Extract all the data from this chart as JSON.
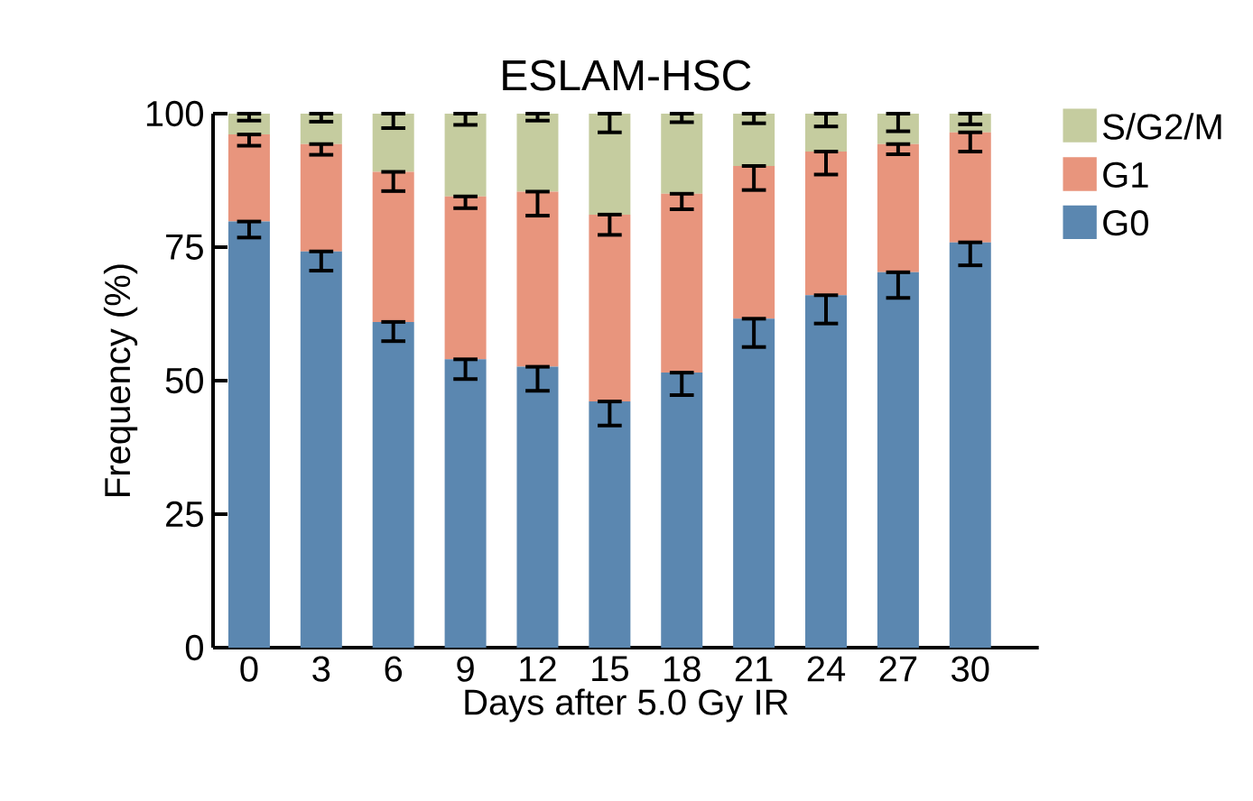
{
  "chart_data": {
    "type": "bar",
    "stacked": true,
    "title": "ESLAM-HSC",
    "xlabel": "Days after 5.0 Gy IR",
    "ylabel": "Frequency (%)",
    "categories": [
      "0",
      "3",
      "6",
      "9",
      "12",
      "15",
      "18",
      "21",
      "24",
      "27",
      "30"
    ],
    "series": [
      {
        "name": "G0",
        "color": "#5b87b0",
        "values": [
          79.8,
          74.2,
          61.0,
          54.0,
          52.6,
          46.1,
          51.5,
          61.6,
          66.0,
          70.3,
          75.9
        ],
        "errors": [
          [
            76.8,
            79.8
          ],
          [
            70.6,
            74.2
          ],
          [
            57.4,
            61.0
          ],
          [
            50.3,
            54.0
          ],
          [
            48.1,
            52.6
          ],
          [
            41.6,
            46.1
          ],
          [
            47.3,
            51.5
          ],
          [
            56.3,
            61.6
          ],
          [
            60.7,
            66.0
          ],
          [
            65.5,
            70.3
          ],
          [
            71.6,
            75.9
          ]
        ]
      },
      {
        "name": "G1",
        "color": "#e8957d",
        "values": [
          16.3,
          20.1,
          28.1,
          30.5,
          32.8,
          35.0,
          33.5,
          28.6,
          26.9,
          24.0,
          20.6
        ],
        "errors": [
          [
            94.0,
            96.1
          ],
          [
            92.3,
            94.3
          ],
          [
            85.5,
            89.1
          ],
          [
            82.3,
            84.5
          ],
          [
            80.9,
            85.4
          ],
          [
            77.3,
            81.1
          ],
          [
            82.1,
            85.0
          ],
          [
            85.7,
            90.2
          ],
          [
            88.6,
            92.9
          ],
          [
            92.4,
            94.3
          ],
          [
            92.9,
            96.5
          ]
        ]
      },
      {
        "name": "S/G2/M",
        "color": "#c5cc9f",
        "values": [
          3.9,
          5.7,
          10.9,
          15.5,
          14.6,
          18.9,
          15.0,
          9.8,
          7.1,
          5.7,
          3.5
        ],
        "errors": [
          [
            98.7,
            100
          ],
          [
            98.5,
            100
          ],
          [
            97.3,
            100
          ],
          [
            97.9,
            100
          ],
          [
            98.7,
            100
          ],
          [
            96.5,
            100
          ],
          [
            98.4,
            100
          ],
          [
            98.2,
            100
          ],
          [
            97.6,
            100
          ],
          [
            96.7,
            100
          ],
          [
            98.0,
            100
          ]
        ]
      }
    ],
    "ylim": [
      0,
      100
    ],
    "yticks": [
      0,
      25,
      50,
      75,
      100
    ],
    "grid": false,
    "legend": "top right"
  }
}
